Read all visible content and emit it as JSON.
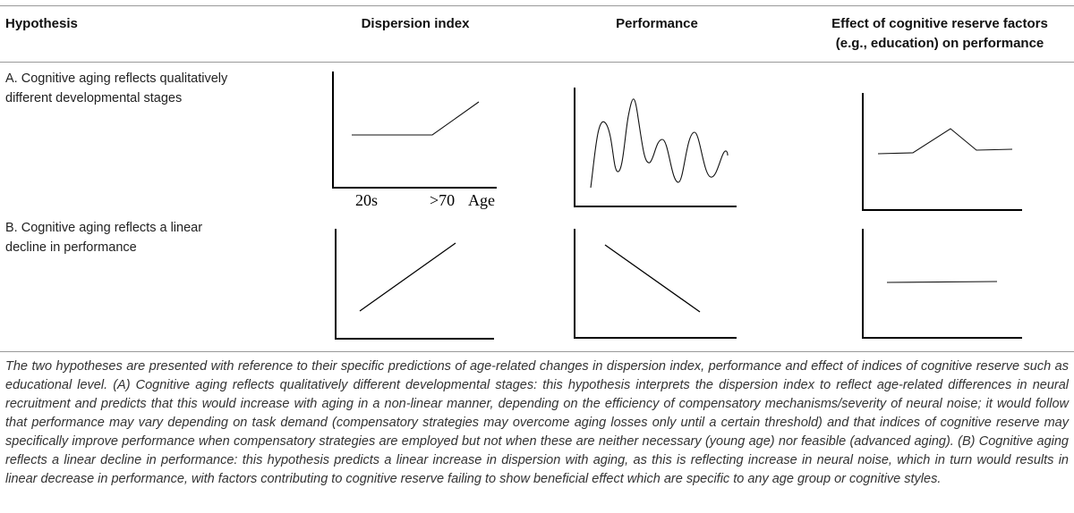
{
  "headers": {
    "hypothesis": "Hypothesis",
    "dispersion": "Dispersion index",
    "performance": "Performance",
    "reserve_line1": "Effect of cognitive reserve factors",
    "reserve_line2": "(e.g., education) on performance"
  },
  "rows": [
    {
      "label_line1": "A. Cognitive aging reflects qualitatively",
      "label_line2": "different developmental stages"
    },
    {
      "label_line1": "B. Cognitive aging reflects a linear",
      "label_line2": "decline in performance"
    }
  ],
  "axis_labels": {
    "tick1": "20s",
    "tick2": ">70",
    "xlabel": "Age"
  },
  "caption": "The two hypotheses are presented with reference to their specific predictions of age-related changes in dispersion index, performance and effect of indices of cognitive reserve such as educational level. (A) Cognitive aging reflects qualitatively different developmental stages: this hypothesis interprets the dispersion index to reflect age-related differences in neural recruitment and predicts that this would increase with aging in a non-linear manner, depending on the efficiency of compensatory mechanisms/severity of neural noise; it would follow that performance may vary depending on task demand (compensatory strategies may overcome aging losses only until a certain threshold) and that indices of cognitive reserve may specifically improve performance when compensatory strategies are employed but not when these are neither necessary (young age) nor feasible (advanced aging). (B) Cognitive aging reflects a linear decline in performance: this hypothesis predicts a linear increase in dispersion with aging, as this is reflecting increase in neural noise, which in turn would results in linear decrease in performance, with factors contributing to cognitive reserve failing to show beneficial effect which are specific to any age group or cognitive styles."
}
